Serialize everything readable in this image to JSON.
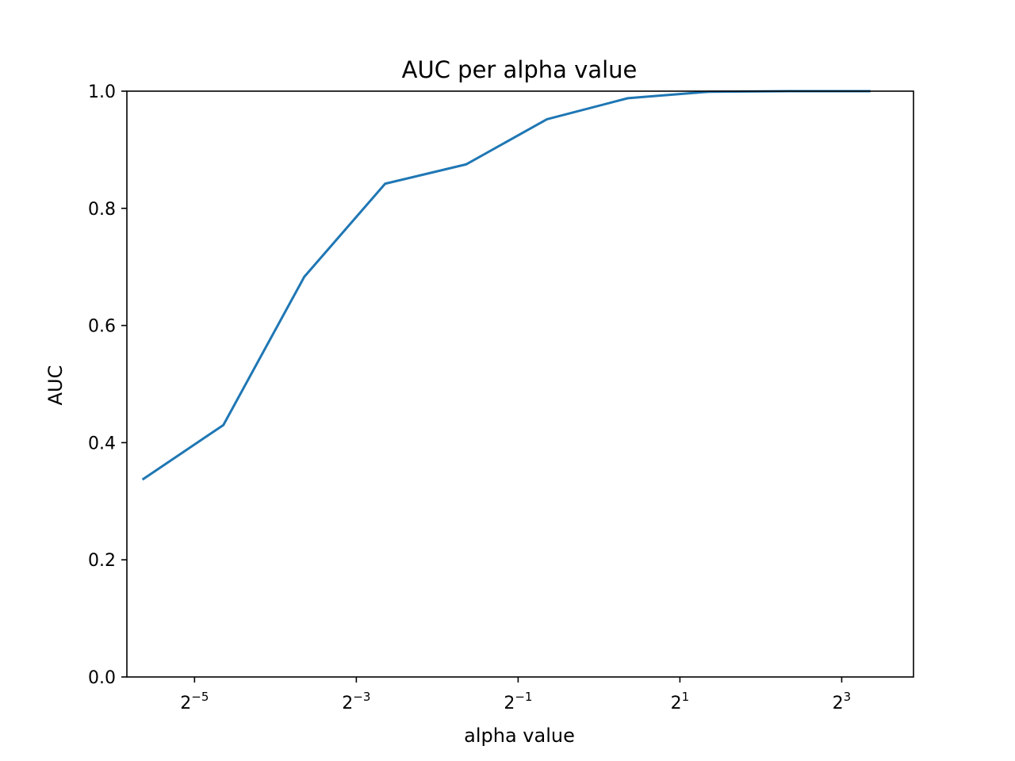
{
  "chart_data": {
    "type": "line",
    "title": "AUC per alpha value",
    "xlabel": "alpha value",
    "ylabel": "AUC",
    "x_scale": "log2",
    "xlim": [
      0.0175,
      14.8
    ],
    "ylim": [
      0.0,
      1.0
    ],
    "x_ticks": [
      {
        "base": "2",
        "exponent": "−5",
        "value": 0.03125
      },
      {
        "base": "2",
        "exponent": "−3",
        "value": 0.125
      },
      {
        "base": "2",
        "exponent": "−1",
        "value": 0.5
      },
      {
        "base": "2",
        "exponent": "1",
        "value": 2
      },
      {
        "base": "2",
        "exponent": "3",
        "value": 8
      }
    ],
    "y_ticks": [
      {
        "label": "0.0",
        "value": 0.0
      },
      {
        "label": "0.2",
        "value": 0.2
      },
      {
        "label": "0.4",
        "value": 0.4
      },
      {
        "label": "0.6",
        "value": 0.6
      },
      {
        "label": "0.8",
        "value": 0.8
      },
      {
        "label": "1.0",
        "value": 1.0
      }
    ],
    "grid": false,
    "series": [
      {
        "color": "#1f77b4",
        "x": [
          0.02,
          0.04,
          0.08,
          0.16,
          0.32,
          0.64,
          1.28,
          2.56,
          5.12,
          10.24
        ],
        "y": [
          0.337,
          0.43,
          0.683,
          0.842,
          0.875,
          0.952,
          0.988,
          0.999,
          1.0,
          1.0
        ]
      }
    ]
  }
}
